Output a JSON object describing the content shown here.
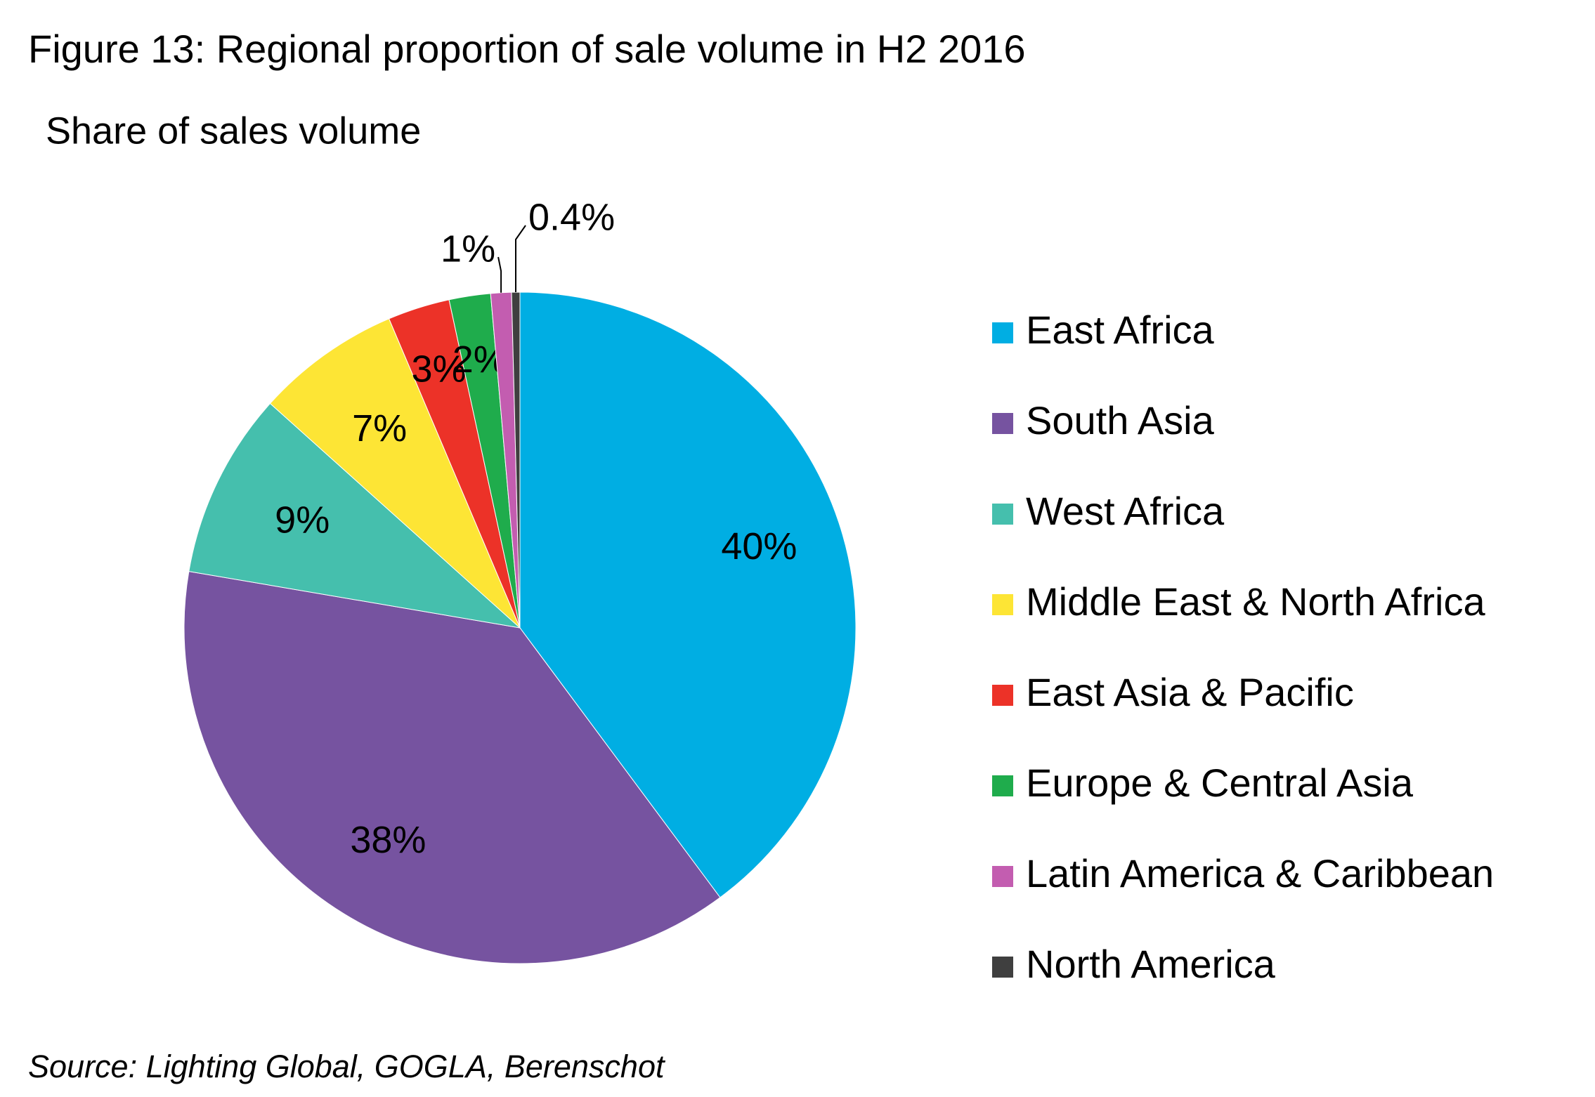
{
  "chart_data": {
    "type": "pie",
    "title": "Figure 13: Regional proportion of sale volume in H2 2016",
    "subtitle": "Share of sales volume",
    "source": "Source: Lighting Global, GOGLA, Berenschot",
    "categories": [
      "East Africa",
      "South Asia",
      "West Africa",
      "Middle East & North Africa",
      "East Asia & Pacific",
      "Europe & Central Asia",
      "Latin America & Caribbean",
      "North America"
    ],
    "values": [
      40,
      38,
      9,
      7,
      3,
      2,
      1,
      0.4
    ],
    "value_labels": [
      "40%",
      "38%",
      "9%",
      "7%",
      "3%",
      "2%",
      "1%",
      "0.4%"
    ],
    "colors": [
      "#00aee3",
      "#7653a0",
      "#45bfad",
      "#fde535",
      "#ec3228",
      "#1fac4c",
      "#c35db0",
      "#3f3f3f"
    ],
    "value_label_colors": [
      "#ffffff",
      "#ffffff",
      "#000000",
      "#000000",
      "#000000",
      "#000000",
      "#000000",
      "#000000"
    ],
    "legend": "right"
  }
}
